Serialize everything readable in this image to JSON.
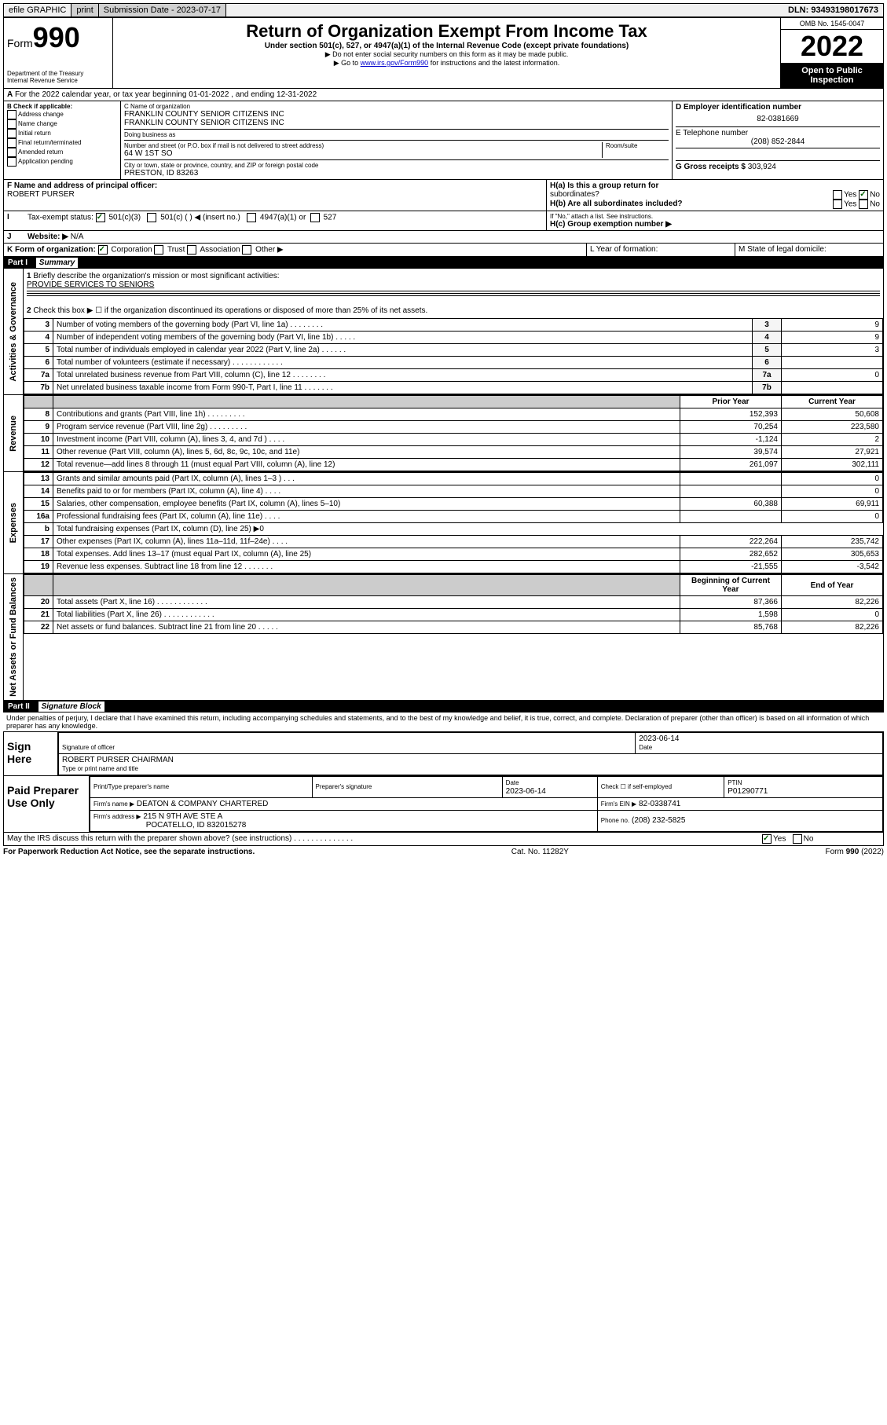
{
  "topbar": {
    "efile": "efile GRAPHIC",
    "print": "print",
    "subdate_label": "Submission Date - 2023-07-17",
    "dln": "DLN: 93493198017673"
  },
  "header": {
    "form_label": "Form",
    "form_num": "990",
    "dept": "Department of the Treasury",
    "irs": "Internal Revenue Service",
    "title": "Return of Organization Exempt From Income Tax",
    "subtitle": "Under section 501(c), 527, or 4947(a)(1) of the Internal Revenue Code (except private foundations)",
    "hint1": "▶ Do not enter social security numbers on this form as it may be made public.",
    "hint2_pre": "▶ Go to ",
    "hint2_link": "www.irs.gov/Form990",
    "hint2_post": " for instructions and the latest information.",
    "omb": "OMB No. 1545-0047",
    "year": "2022",
    "open": "Open to Public Inspection"
  },
  "lineA": "For the 2022 calendar year, or tax year beginning 01-01-2022    , and ending 12-31-2022",
  "sectionB": {
    "label": "B Check if applicable:",
    "items": [
      "Address change",
      "Name change",
      "Initial return",
      "Final return/terminated",
      "Amended return",
      "Application pending"
    ]
  },
  "sectionC": {
    "name_label": "C Name of organization",
    "name1": "FRANKLIN COUNTY SENIOR CITIZENS INC",
    "name2": "FRANKLIN COUNTY SENIOR CITIZENS INC",
    "dba": "Doing business as",
    "addr_label": "Number and street (or P.O. box if mail is not delivered to street address)",
    "room": "Room/suite",
    "addr": "64 W 1ST SO",
    "city_label": "City or town, state or province, country, and ZIP or foreign postal code",
    "city": "PRESTON, ID  83263"
  },
  "sectionD": {
    "ein_label": "D Employer identification number",
    "ein": "82-0381669",
    "tel_label": "E Telephone number",
    "tel": "(208) 852-2844",
    "gross_label": "G Gross receipts $",
    "gross": "303,924"
  },
  "sectionF": {
    "label": "F Name and address of principal officer:",
    "name": "ROBERT PURSER"
  },
  "sectionH": {
    "a": "H(a)  Is this a group return for",
    "a2": "subordinates?",
    "b": "H(b)  Are all subordinates included?",
    "b_note": "If \"No,\" attach a list. See instructions.",
    "c": "H(c)  Group exemption number ▶",
    "yes": "Yes",
    "no": "No"
  },
  "sectionI": {
    "label": "Tax-exempt status:",
    "c3": "501(c)(3)",
    "c": "501(c) (   ) ◀ (insert no.)",
    "a1": "4947(a)(1) or",
    "s527": "527"
  },
  "sectionJ": {
    "label": "Website: ▶",
    "val": "N/A"
  },
  "sectionK": {
    "label": "K Form of organization:",
    "corp": "Corporation",
    "trust": "Trust",
    "assoc": "Association",
    "other": "Other ▶"
  },
  "sectionL": "L Year of formation:",
  "sectionM": "M State of legal domicile:",
  "part1": {
    "title": "Part I",
    "sub": "Summary",
    "q1": "Briefly describe the organization's mission or most significant activities:",
    "a1": "PROVIDE SERVICES TO SENIORS",
    "q2": "Check this box ▶ ☐  if the organization discontinued its operations or disposed of more than 25% of its net assets.",
    "prior": "Prior Year",
    "current": "Current Year",
    "begin": "Beginning of Current Year",
    "end": "End of Year",
    "gov_label": "Activities & Governance",
    "rev_label": "Revenue",
    "exp_label": "Expenses",
    "net_label": "Net Assets or Fund Balances",
    "lines_gov": [
      {
        "n": "3",
        "t": "Number of voting members of the governing body (Part VI, line 1a)   .    .    .    .    .    .    .    .",
        "v": "9"
      },
      {
        "n": "4",
        "t": "Number of independent voting members of the governing body (Part VI, line 1b)   .    .    .    .    .",
        "v": "9"
      },
      {
        "n": "5",
        "t": "Total number of individuals employed in calendar year 2022 (Part V, line 2a)   .    .    .    .    .    .",
        "v": "3"
      },
      {
        "n": "6",
        "t": "Total number of volunteers (estimate if necessary)   .    .    .    .    .    .    .    .    .    .    .    .",
        "v": ""
      },
      {
        "n": "7a",
        "t": "Total unrelated business revenue from Part VIII, column (C), line 12   .    .    .    .    .    .    .    .",
        "v": "0"
      },
      {
        "n": "7b",
        "t": "Net unrelated business taxable income from Form 990-T, Part I, line 11   .    .    .    .    .    .    .",
        "v": ""
      }
    ],
    "lines_rev": [
      {
        "n": "8",
        "t": "Contributions and grants (Part VIII, line 1h)   .    .    .    .    .    .    .    .    .",
        "p": "152,393",
        "c": "50,608"
      },
      {
        "n": "9",
        "t": "Program service revenue (Part VIII, line 2g)   .    .    .    .    .    .    .    .    .",
        "p": "70,254",
        "c": "223,580"
      },
      {
        "n": "10",
        "t": "Investment income (Part VIII, column (A), lines 3, 4, and 7d )   .    .    .    .",
        "p": "-1,124",
        "c": "2"
      },
      {
        "n": "11",
        "t": "Other revenue (Part VIII, column (A), lines 5, 6d, 8c, 9c, 10c, and 11e)",
        "p": "39,574",
        "c": "27,921"
      },
      {
        "n": "12",
        "t": "Total revenue—add lines 8 through 11 (must equal Part VIII, column (A), line 12)",
        "p": "261,097",
        "c": "302,111"
      }
    ],
    "lines_exp": [
      {
        "n": "13",
        "t": "Grants and similar amounts paid (Part IX, column (A), lines 1–3 )   .    .    .",
        "p": "",
        "c": "0"
      },
      {
        "n": "14",
        "t": "Benefits paid to or for members (Part IX, column (A), line 4)   .    .    .    .",
        "p": "",
        "c": "0"
      },
      {
        "n": "15",
        "t": "Salaries, other compensation, employee benefits (Part IX, column (A), lines 5–10)",
        "p": "60,388",
        "c": "69,911"
      },
      {
        "n": "16a",
        "t": "Professional fundraising fees (Part IX, column (A), line 11e)   .    .    .    .",
        "p": "",
        "c": "0"
      },
      {
        "n": "b",
        "t": "Total fundraising expenses (Part IX, column (D), line 25) ▶0",
        "p": null,
        "c": null
      },
      {
        "n": "17",
        "t": "Other expenses (Part IX, column (A), lines 11a–11d, 11f–24e)   .    .    .    .",
        "p": "222,264",
        "c": "235,742"
      },
      {
        "n": "18",
        "t": "Total expenses. Add lines 13–17 (must equal Part IX, column (A), line 25)",
        "p": "282,652",
        "c": "305,653"
      },
      {
        "n": "19",
        "t": "Revenue less expenses. Subtract line 18 from line 12   .    .    .    .    .    .    .",
        "p": "-21,555",
        "c": "-3,542"
      }
    ],
    "lines_net": [
      {
        "n": "20",
        "t": "Total assets (Part X, line 16)   .    .    .    .    .    .    .    .    .    .    .    .",
        "p": "87,366",
        "c": "82,226"
      },
      {
        "n": "21",
        "t": "Total liabilities (Part X, line 26)   .    .    .    .    .    .    .    .    .    .    .    .",
        "p": "1,598",
        "c": "0"
      },
      {
        "n": "22",
        "t": "Net assets or fund balances. Subtract line 21 from line 20   .    .    .    .    .",
        "p": "85,768",
        "c": "82,226"
      }
    ]
  },
  "part2": {
    "title": "Part II",
    "sub": "Signature Block",
    "decl": "Under penalties of perjury, I declare that I have examined this return, including accompanying schedules and statements, and to the best of my knowledge and belief, it is true, correct, and complete. Declaration of preparer (other than officer) is based on all information of which preparer has any knowledge.",
    "sign_here": "Sign Here",
    "sig_officer": "Signature of officer",
    "date": "Date",
    "sig_date": "2023-06-14",
    "officer_name": "ROBERT PURSER  CHAIRMAN",
    "type_name": "Type or print name and title",
    "paid": "Paid Preparer Use Only",
    "prep_name": "Print/Type preparer's name",
    "prep_sig": "Preparer's signature",
    "prep_date": "2023-06-14",
    "check_self": "Check ☐ if self-employed",
    "ptin_label": "PTIN",
    "ptin": "P01290771",
    "firm_name_label": "Firm's name      ▶",
    "firm_name": "DEATON & COMPANY CHARTERED",
    "firm_ein_label": "Firm's EIN ▶",
    "firm_ein": "82-0338741",
    "firm_addr_label": "Firm's address ▶",
    "firm_addr1": "215 N 9TH AVE STE A",
    "firm_addr2": "POCATELLO, ID  832015278",
    "phone_label": "Phone no.",
    "phone": "(208) 232-5825",
    "may_irs": "May the IRS discuss this return with the preparer shown above? (see instructions)   .    .    .    .    .    .    .    .    .    .    .    .    .    .",
    "yes": "Yes",
    "no": "No"
  },
  "footer": {
    "left": "For Paperwork Reduction Act Notice, see the separate instructions.",
    "mid": "Cat. No. 11282Y",
    "right": "Form 990 (2022)"
  }
}
